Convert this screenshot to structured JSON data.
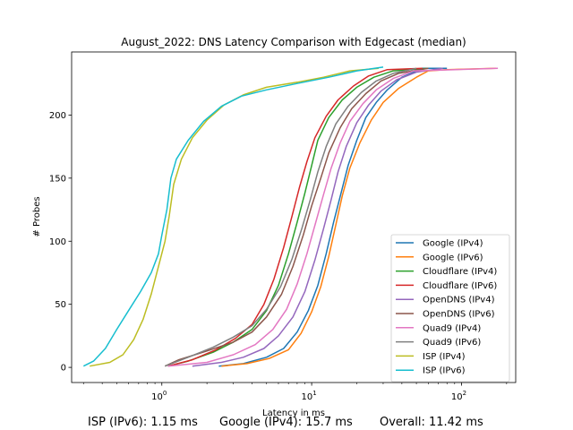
{
  "chart_data": {
    "type": "line",
    "title": "August_2022: DNS Latency Comparison with Edgecast (median)",
    "xlabel": "Latency in ms",
    "ylabel": "# Probes",
    "xscale": "log",
    "xlim": [
      0.25,
      230
    ],
    "ylim": [
      -12,
      250
    ],
    "x_ticks": [
      {
        "value": 1,
        "label": "10^0"
      },
      {
        "value": 10,
        "label": "10^1"
      },
      {
        "value": 100,
        "label": "10^2"
      }
    ],
    "y_ticks": [
      0,
      50,
      100,
      150,
      200
    ],
    "grid": false,
    "legend_position": "lower-right",
    "series": [
      {
        "name": "Google (IPv4)",
        "color": "#1f77b4",
        "points": [
          [
            2.4,
            1
          ],
          [
            3.5,
            3
          ],
          [
            5,
            8
          ],
          [
            6.5,
            15
          ],
          [
            8,
            28
          ],
          [
            9.5,
            45
          ],
          [
            11,
            65
          ],
          [
            12.5,
            90
          ],
          [
            14,
            115
          ],
          [
            15.7,
            138
          ],
          [
            17.5,
            160
          ],
          [
            20,
            180
          ],
          [
            23,
            198
          ],
          [
            27,
            210
          ],
          [
            32,
            220
          ],
          [
            40,
            230
          ],
          [
            55,
            237
          ],
          [
            80,
            237
          ]
        ]
      },
      {
        "name": "Google (IPv6)",
        "color": "#ff7f0e",
        "points": [
          [
            2.5,
            1
          ],
          [
            3.7,
            3
          ],
          [
            5.2,
            7
          ],
          [
            7,
            14
          ],
          [
            8.5,
            27
          ],
          [
            10,
            44
          ],
          [
            11.5,
            64
          ],
          [
            13,
            88
          ],
          [
            14.5,
            113
          ],
          [
            16,
            136
          ],
          [
            18,
            158
          ],
          [
            21,
            178
          ],
          [
            25,
            196
          ],
          [
            30,
            210
          ],
          [
            38,
            221
          ],
          [
            50,
            230
          ],
          [
            60,
            235
          ],
          [
            80,
            236
          ],
          [
            170,
            237
          ]
        ]
      },
      {
        "name": "Cloudflare (IPv4)",
        "color": "#2ca02c",
        "points": [
          [
            1.1,
            1
          ],
          [
            1.5,
            5
          ],
          [
            2.2,
            12
          ],
          [
            3,
            20
          ],
          [
            4,
            30
          ],
          [
            5,
            45
          ],
          [
            6,
            65
          ],
          [
            7,
            90
          ],
          [
            8,
            115
          ],
          [
            9,
            138
          ],
          [
            10,
            160
          ],
          [
            11,
            180
          ],
          [
            13,
            198
          ],
          [
            16,
            212
          ],
          [
            20,
            222
          ],
          [
            26,
            230
          ],
          [
            35,
            235
          ],
          [
            60,
            237
          ]
        ]
      },
      {
        "name": "Cloudflare (IPv6)",
        "color": "#d62728",
        "points": [
          [
            1.1,
            1
          ],
          [
            1.6,
            6
          ],
          [
            2.3,
            14
          ],
          [
            3.1,
            23
          ],
          [
            4,
            34
          ],
          [
            4.8,
            50
          ],
          [
            5.6,
            70
          ],
          [
            6.5,
            95
          ],
          [
            7.4,
            120
          ],
          [
            8.3,
            143
          ],
          [
            9.3,
            163
          ],
          [
            10.5,
            182
          ],
          [
            12.5,
            199
          ],
          [
            15,
            212
          ],
          [
            19,
            223
          ],
          [
            24,
            231
          ],
          [
            32,
            236
          ],
          [
            55,
            237
          ]
        ]
      },
      {
        "name": "OpenDNS (IPv4)",
        "color": "#9467bd",
        "points": [
          [
            1.6,
            1
          ],
          [
            2.5,
            4
          ],
          [
            3.5,
            8
          ],
          [
            4.8,
            15
          ],
          [
            6,
            25
          ],
          [
            7.5,
            40
          ],
          [
            9,
            60
          ],
          [
            10.5,
            85
          ],
          [
            12,
            110
          ],
          [
            13.5,
            133
          ],
          [
            15,
            155
          ],
          [
            17,
            175
          ],
          [
            20,
            194
          ],
          [
            24,
            208
          ],
          [
            29,
            219
          ],
          [
            37,
            228
          ],
          [
            50,
            234
          ],
          [
            75,
            237
          ]
        ]
      },
      {
        "name": "OpenDNS (IPv6)",
        "color": "#8c564b",
        "points": [
          [
            1.05,
            1
          ],
          [
            1.3,
            6
          ],
          [
            2,
            13
          ],
          [
            3,
            20
          ],
          [
            4,
            28
          ],
          [
            5,
            40
          ],
          [
            6.3,
            58
          ],
          [
            7.5,
            80
          ],
          [
            8.8,
            105
          ],
          [
            10,
            128
          ],
          [
            11.5,
            150
          ],
          [
            13,
            170
          ],
          [
            15.5,
            190
          ],
          [
            18.5,
            205
          ],
          [
            23,
            217
          ],
          [
            29,
            227
          ],
          [
            38,
            233
          ],
          [
            60,
            237
          ]
        ]
      },
      {
        "name": "Quad9 (IPv4)",
        "color": "#e377c2",
        "points": [
          [
            1.1,
            1
          ],
          [
            2,
            4
          ],
          [
            3,
            10
          ],
          [
            4.2,
            18
          ],
          [
            5.5,
            30
          ],
          [
            6.8,
            46
          ],
          [
            8,
            66
          ],
          [
            9.3,
            90
          ],
          [
            10.6,
            114
          ],
          [
            12,
            137
          ],
          [
            13.5,
            158
          ],
          [
            15.5,
            178
          ],
          [
            18,
            195
          ],
          [
            22,
            209
          ],
          [
            27,
            220
          ],
          [
            35,
            229
          ],
          [
            48,
            235
          ],
          [
            175,
            237
          ]
        ]
      },
      {
        "name": "Quad9 (IPv6)",
        "color": "#7f7f7f",
        "points": [
          [
            1.05,
            1
          ],
          [
            1.5,
            8
          ],
          [
            2.2,
            16
          ],
          [
            3,
            24
          ],
          [
            4,
            33
          ],
          [
            5,
            46
          ],
          [
            6.2,
            64
          ],
          [
            7.4,
            86
          ],
          [
            8.6,
            110
          ],
          [
            9.8,
            133
          ],
          [
            11,
            155
          ],
          [
            12.5,
            175
          ],
          [
            14.5,
            193
          ],
          [
            17.5,
            207
          ],
          [
            21.5,
            218
          ],
          [
            27,
            227
          ],
          [
            35,
            233
          ],
          [
            50,
            237
          ]
        ]
      },
      {
        "name": "ISP (IPv4)",
        "color": "#bcbd22",
        "points": [
          [
            0.33,
            1
          ],
          [
            0.45,
            4
          ],
          [
            0.55,
            10
          ],
          [
            0.65,
            22
          ],
          [
            0.75,
            38
          ],
          [
            0.85,
            58
          ],
          [
            0.95,
            80
          ],
          [
            1.05,
            100
          ],
          [
            1.12,
            120
          ],
          [
            1.2,
            145
          ],
          [
            1.35,
            165
          ],
          [
            1.6,
            182
          ],
          [
            2,
            196
          ],
          [
            2.6,
            208
          ],
          [
            3.5,
            216
          ],
          [
            5,
            222
          ],
          [
            8,
            226
          ],
          [
            12,
            230
          ],
          [
            18,
            235
          ],
          [
            28,
            237
          ]
        ]
      },
      {
        "name": "ISP (IPv6)",
        "color": "#17becf",
        "points": [
          [
            0.3,
            1
          ],
          [
            0.35,
            5
          ],
          [
            0.42,
            15
          ],
          [
            0.5,
            30
          ],
          [
            0.6,
            45
          ],
          [
            0.72,
            60
          ],
          [
            0.85,
            75
          ],
          [
            0.95,
            90
          ],
          [
            1.0,
            105
          ],
          [
            1.08,
            125
          ],
          [
            1.15,
            150
          ],
          [
            1.25,
            165
          ],
          [
            1.5,
            180
          ],
          [
            1.9,
            195
          ],
          [
            2.5,
            207
          ],
          [
            3.4,
            215
          ],
          [
            5,
            220
          ],
          [
            8,
            225
          ],
          [
            13,
            230
          ],
          [
            20,
            235
          ],
          [
            30,
            238
          ]
        ]
      }
    ]
  },
  "footer": {
    "isp": "ISP (IPv6): 1.15 ms",
    "google": "Google (IPv4): 15.7 ms",
    "overall": "Overall: 11.42 ms"
  }
}
